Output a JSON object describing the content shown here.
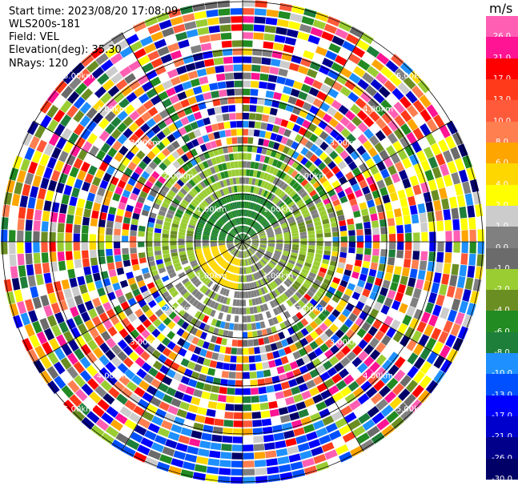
{
  "header": {
    "start_time": "Start time: 2023/08/20 17:08:09",
    "device": "WLS200s-181",
    "field": "Field: VEL",
    "elevation": "Elevation(deg): 35.30",
    "nrays": "NRays: 120"
  },
  "colorbar": {
    "unit": "m/s",
    "ticks": [
      {
        "label": "26.0",
        "color": "#ff5fb3"
      },
      {
        "label": "21.0",
        "color": "#ff1493"
      },
      {
        "label": "17.0",
        "color": "#ff0000"
      },
      {
        "label": "13.0",
        "color": "#ff3a1a"
      },
      {
        "label": "10.0",
        "color": "#ff5a3a"
      },
      {
        "label": "8.0",
        "color": "#ff7f50"
      },
      {
        "label": "6.0",
        "color": "#ffa500"
      },
      {
        "label": "4.0",
        "color": "#ffd700"
      },
      {
        "label": "2.0",
        "color": "#ffff00"
      },
      {
        "label": "1.0",
        "color": "#cccccc"
      },
      {
        "label": "0.0",
        "color": "#808080"
      },
      {
        "label": "-1.0",
        "color": "#6b6b6b"
      },
      {
        "label": "-2.0",
        "color": "#9acd32"
      },
      {
        "label": "-4.0",
        "color": "#6b8e23"
      },
      {
        "label": "-6.0",
        "color": "#228b22"
      },
      {
        "label": "-8.0",
        "color": "#1e7f3a"
      },
      {
        "label": "-10.0",
        "color": "#1e90ff"
      },
      {
        "label": "-13.0",
        "color": "#0050ff"
      },
      {
        "label": "-17.0",
        "color": "#0000ff"
      },
      {
        "label": "-21.0",
        "color": "#0000cd"
      },
      {
        "label": "-26.0",
        "color": "#00008b"
      },
      {
        "label": "-30.0",
        "color": "#000066"
      }
    ]
  },
  "range_rings": {
    "labels": [
      "1.00km",
      "2.00km",
      "3.00km",
      "4.00km",
      "5.00km"
    ]
  }
}
